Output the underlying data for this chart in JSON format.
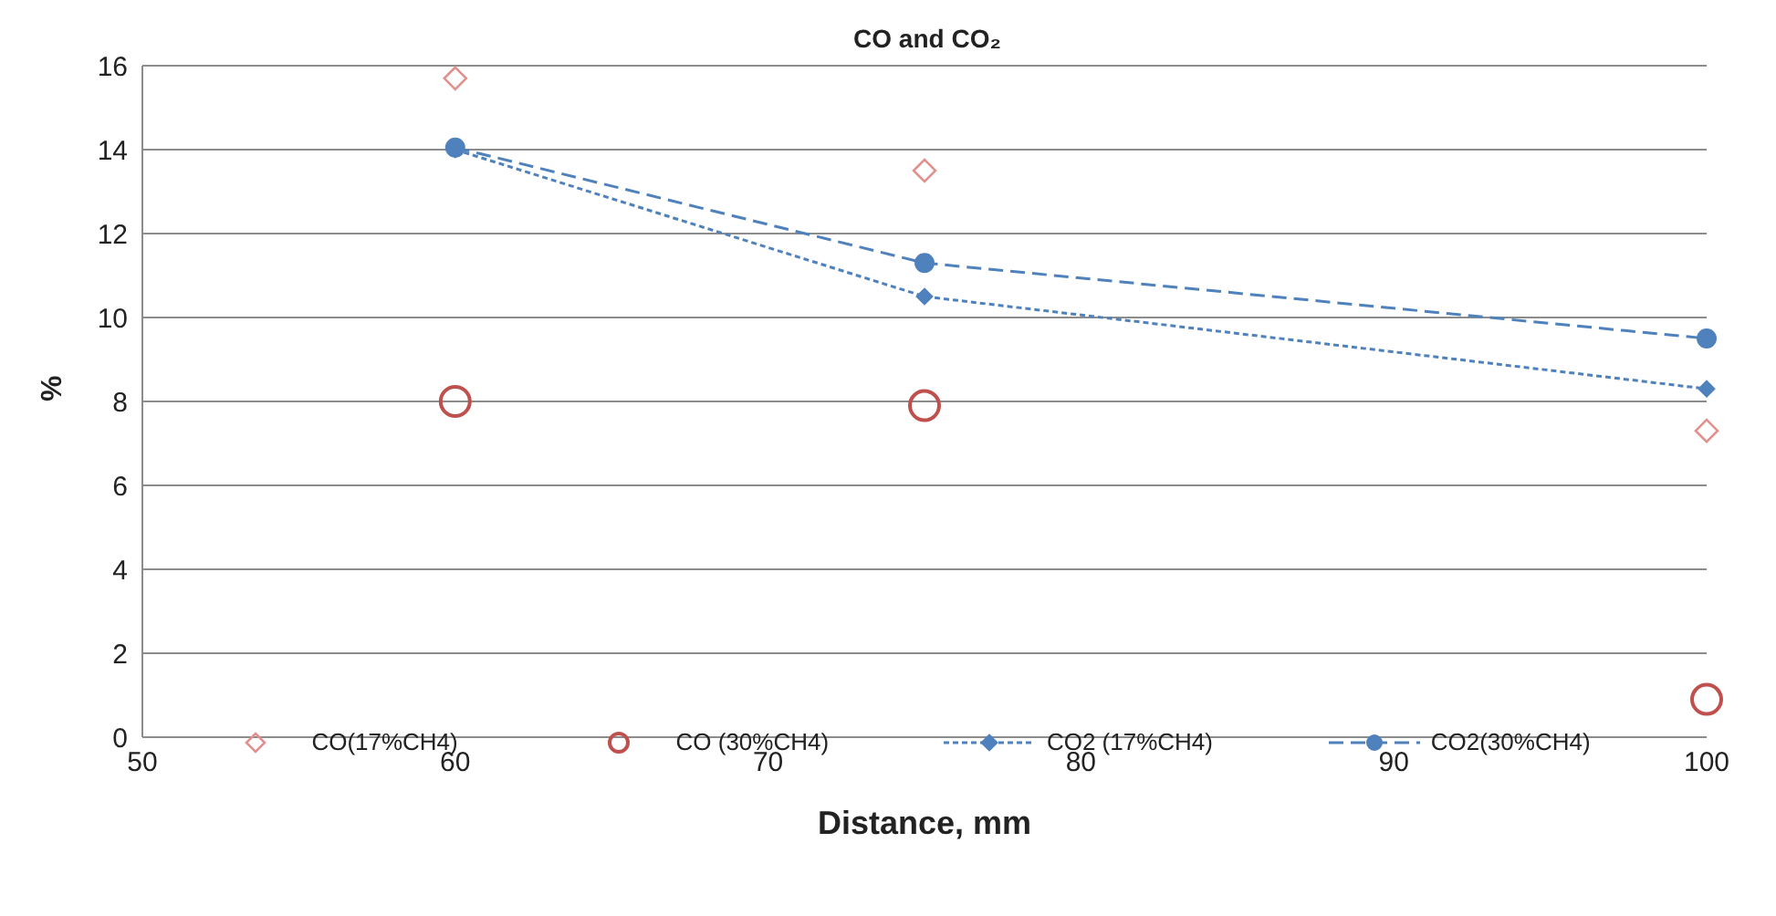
{
  "chart_data": {
    "type": "scatter",
    "title": "CO and CO₂",
    "xlabel": "Distance, mm",
    "ylabel": "%",
    "xlim": [
      50,
      100
    ],
    "xticks": [
      50,
      60,
      70,
      80,
      90,
      100
    ],
    "ylim": [
      0,
      16
    ],
    "yticks": [
      0,
      2,
      4,
      6,
      8,
      10,
      12,
      14,
      16
    ],
    "grid": "y",
    "legend": "bottom",
    "series": [
      {
        "name": "CO(17%CH4)",
        "marker": "diamond",
        "color": "#e0918e",
        "x": [
          60,
          75,
          100
        ],
        "values": [
          15.7,
          13.5,
          7.3
        ]
      },
      {
        "name": "CO (30%CH4)",
        "marker": "circle",
        "color": "#c0504d",
        "x": [
          60,
          75,
          100
        ],
        "values": [
          8.0,
          7.9,
          0.9
        ]
      },
      {
        "name": "CO2 (17%CH4)",
        "type": "line",
        "marker": "diamond",
        "line_style": "dotted",
        "color": "#4f81bd",
        "x": [
          60,
          75,
          100
        ],
        "values": [
          14.0,
          10.5,
          8.3
        ]
      },
      {
        "name": "CO2(30%CH4)",
        "type": "line",
        "marker": "circle",
        "line_style": "dashed",
        "color": "#4f81bd",
        "x": [
          60,
          75,
          100
        ],
        "values": [
          14.05,
          11.3,
          9.5
        ]
      }
    ]
  }
}
